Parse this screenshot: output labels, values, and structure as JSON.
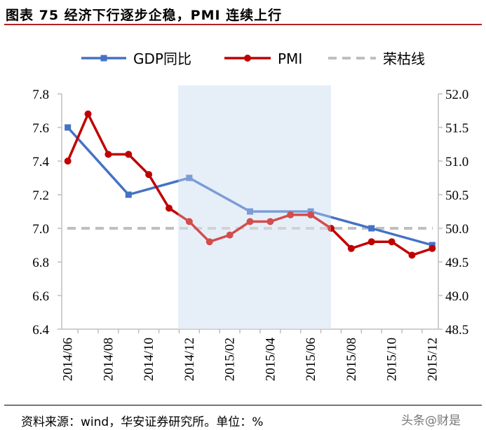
{
  "figure": {
    "title": "图表 75  经济下行逐步企稳，PMI 连续上行",
    "source": "资料来源：wind，华安证券研究所。单位：%",
    "watermark": "头条@财是"
  },
  "chart_data": {
    "type": "line",
    "legend_position": "top",
    "x": [
      "2014/06",
      "2014/07",
      "2014/08",
      "2014/09",
      "2014/10",
      "2014/11",
      "2014/12",
      "2015/01",
      "2015/02",
      "2015/03",
      "2015/04",
      "2015/05",
      "2015/06",
      "2015/07",
      "2015/08",
      "2015/09",
      "2015/10",
      "2015/11",
      "2015/12"
    ],
    "x_tick_labels": [
      "2014/06",
      "2014/08",
      "2014/10",
      "2014/12",
      "2015/02",
      "2015/04",
      "2015/06",
      "2015/08",
      "2015/10",
      "2015/12"
    ],
    "left_axis": {
      "ylim": [
        6.4,
        7.8
      ],
      "ticks": [
        "6.4",
        "6.6",
        "6.8",
        "7.0",
        "7.2",
        "7.4",
        "7.6",
        "7.8"
      ]
    },
    "right_axis": {
      "ylim": [
        48.5,
        52.0
      ],
      "ticks": [
        "48.5",
        "49.0",
        "49.5",
        "50.0",
        "50.5",
        "51.0",
        "51.5",
        "52.0"
      ]
    },
    "highlight": {
      "from": "2014/12",
      "to": "2015/06",
      "color": "#dce8f5"
    },
    "series": [
      {
        "name": "GDP同比",
        "axis": "left",
        "color": "#4472c4",
        "marker": "square",
        "points": [
          {
            "x": "2014/06",
            "y": 7.6
          },
          {
            "x": "2014/09",
            "y": 7.2
          },
          {
            "x": "2014/12",
            "y": 7.3
          },
          {
            "x": "2015/03",
            "y": 7.1
          },
          {
            "x": "2015/06",
            "y": 7.1
          },
          {
            "x": "2015/09",
            "y": 7.0
          },
          {
            "x": "2015/12",
            "y": 6.9
          }
        ]
      },
      {
        "name": "PMI",
        "axis": "right",
        "color": "#c00000",
        "marker": "circle",
        "values": [
          51.0,
          51.7,
          51.1,
          51.1,
          50.8,
          50.3,
          50.1,
          49.8,
          49.9,
          50.1,
          50.1,
          50.2,
          50.2,
          50.0,
          49.7,
          49.8,
          49.8,
          49.6,
          49.7
        ]
      },
      {
        "name": "荣枯线",
        "axis": "right",
        "color": "#bfbfbf",
        "style": "dashed",
        "value": 50.0
      }
    ]
  }
}
